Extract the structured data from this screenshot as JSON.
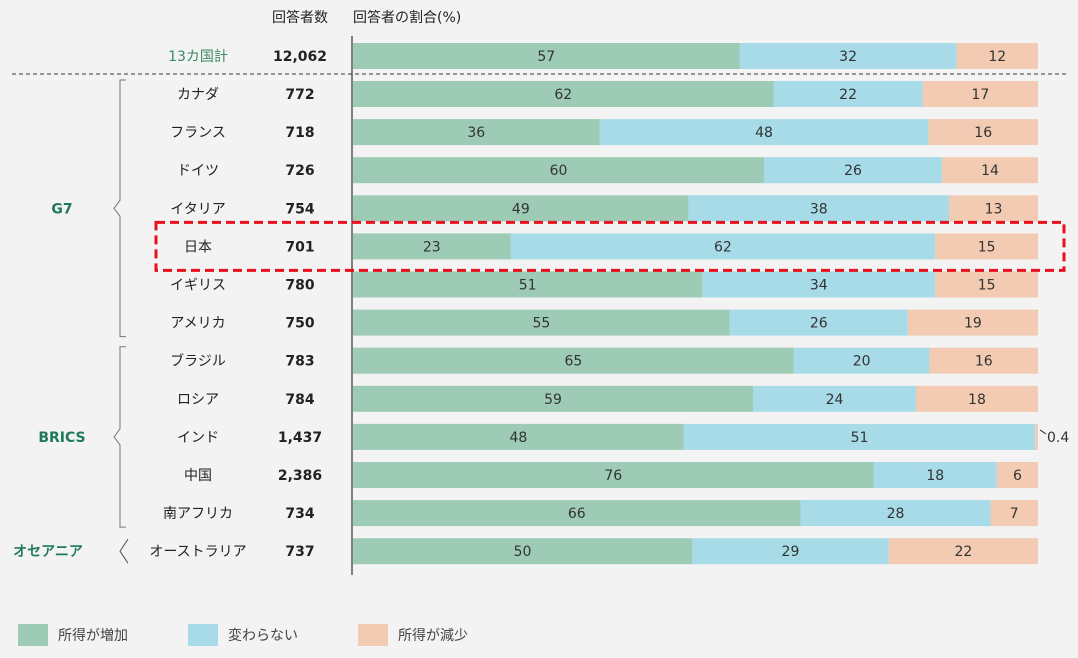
{
  "chart_data": {
    "type": "bar",
    "stacked": true,
    "orientation": "horizontal",
    "count_header": "回答者数",
    "ratio_header": "回答者の割合(%)",
    "total": {
      "category": "13カ国計",
      "count": "12,062",
      "values": [
        57,
        32,
        12
      ]
    },
    "groups": [
      {
        "name": "G7",
        "first": 0,
        "last": 6
      },
      {
        "name": "BRICS",
        "first": 7,
        "last": 11
      },
      {
        "name": "オセアニア",
        "first": 12,
        "last": 12
      }
    ],
    "categories": [
      "カナダ",
      "フランス",
      "ドイツ",
      "イタリア",
      "日本",
      "イギリス",
      "アメリカ",
      "ブラジル",
      "ロシア",
      "インド",
      "中国",
      "南アフリカ",
      "オーストラリア"
    ],
    "counts": [
      "772",
      "718",
      "726",
      "754",
      "701",
      "780",
      "750",
      "783",
      "784",
      "1,437",
      "2,386",
      "734",
      "737"
    ],
    "series": [
      {
        "name": "所得が増加",
        "color": "#9ecbb6",
        "values": [
          62,
          36,
          60,
          49,
          23,
          51,
          55,
          65,
          59,
          48,
          76,
          66,
          50
        ]
      },
      {
        "name": "変わらない",
        "color": "#a7dbe8",
        "values": [
          22,
          48,
          26,
          38,
          62,
          34,
          26,
          20,
          24,
          51,
          18,
          28,
          29
        ]
      },
      {
        "name": "所得が減少",
        "color": "#f3cbb2",
        "values": [
          17,
          16,
          14,
          13,
          15,
          15,
          19,
          16,
          18,
          0.4,
          6,
          7,
          22
        ]
      }
    ],
    "highlight_category": "日本",
    "highlight_color": "#e8101c",
    "annotation": "0.4",
    "legend": {
      "position": "bottom-left"
    },
    "grid": false
  }
}
